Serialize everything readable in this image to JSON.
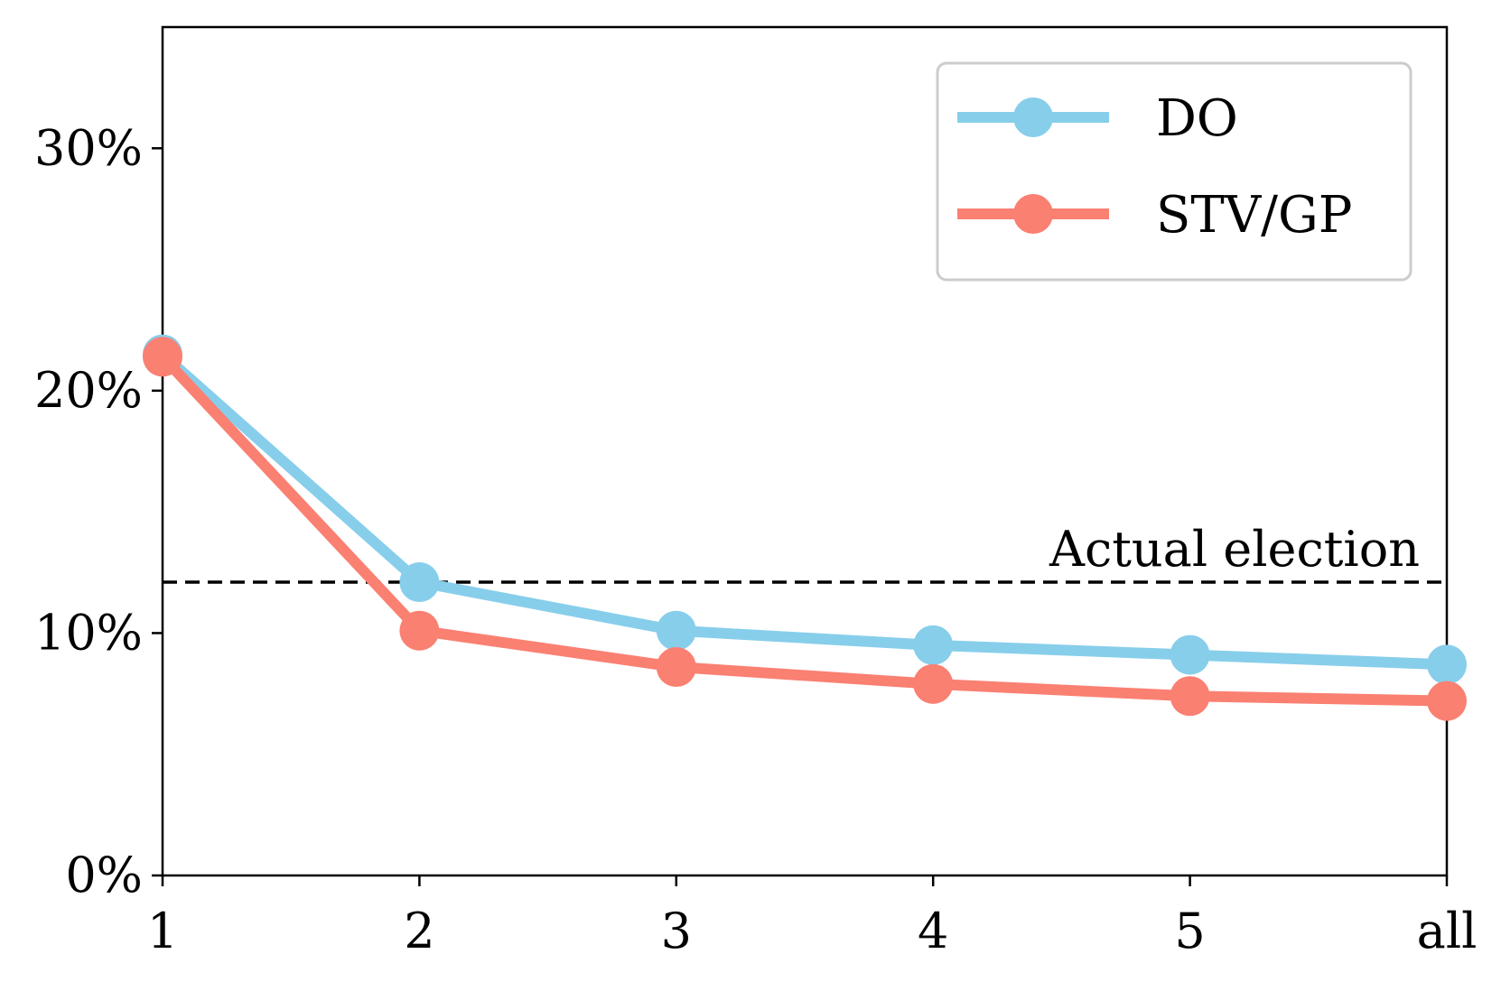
{
  "chart_data": {
    "type": "line",
    "title": "",
    "xlabel": "",
    "ylabel": "",
    "categories": [
      "1",
      "2",
      "3",
      "4",
      "5",
      "all"
    ],
    "ylim": [
      0,
      35
    ],
    "yticks": [
      0,
      10,
      20,
      30
    ],
    "ytick_labels": [
      "0%",
      "10%",
      "20%",
      "30%"
    ],
    "grid": false,
    "legend_position": "top-right",
    "series": [
      {
        "name": "DO",
        "color": "#87CEEB",
        "values": [
          21.5,
          12.1,
          10.1,
          9.5,
          9.1,
          8.7
        ]
      },
      {
        "name": "STV/GP",
        "color": "#FA8072",
        "values": [
          21.4,
          10.1,
          8.6,
          7.9,
          7.4,
          7.2
        ]
      }
    ],
    "reference_line": {
      "label": "Actual election",
      "value": 12.1,
      "style": "dashed",
      "color": "#000000"
    }
  }
}
